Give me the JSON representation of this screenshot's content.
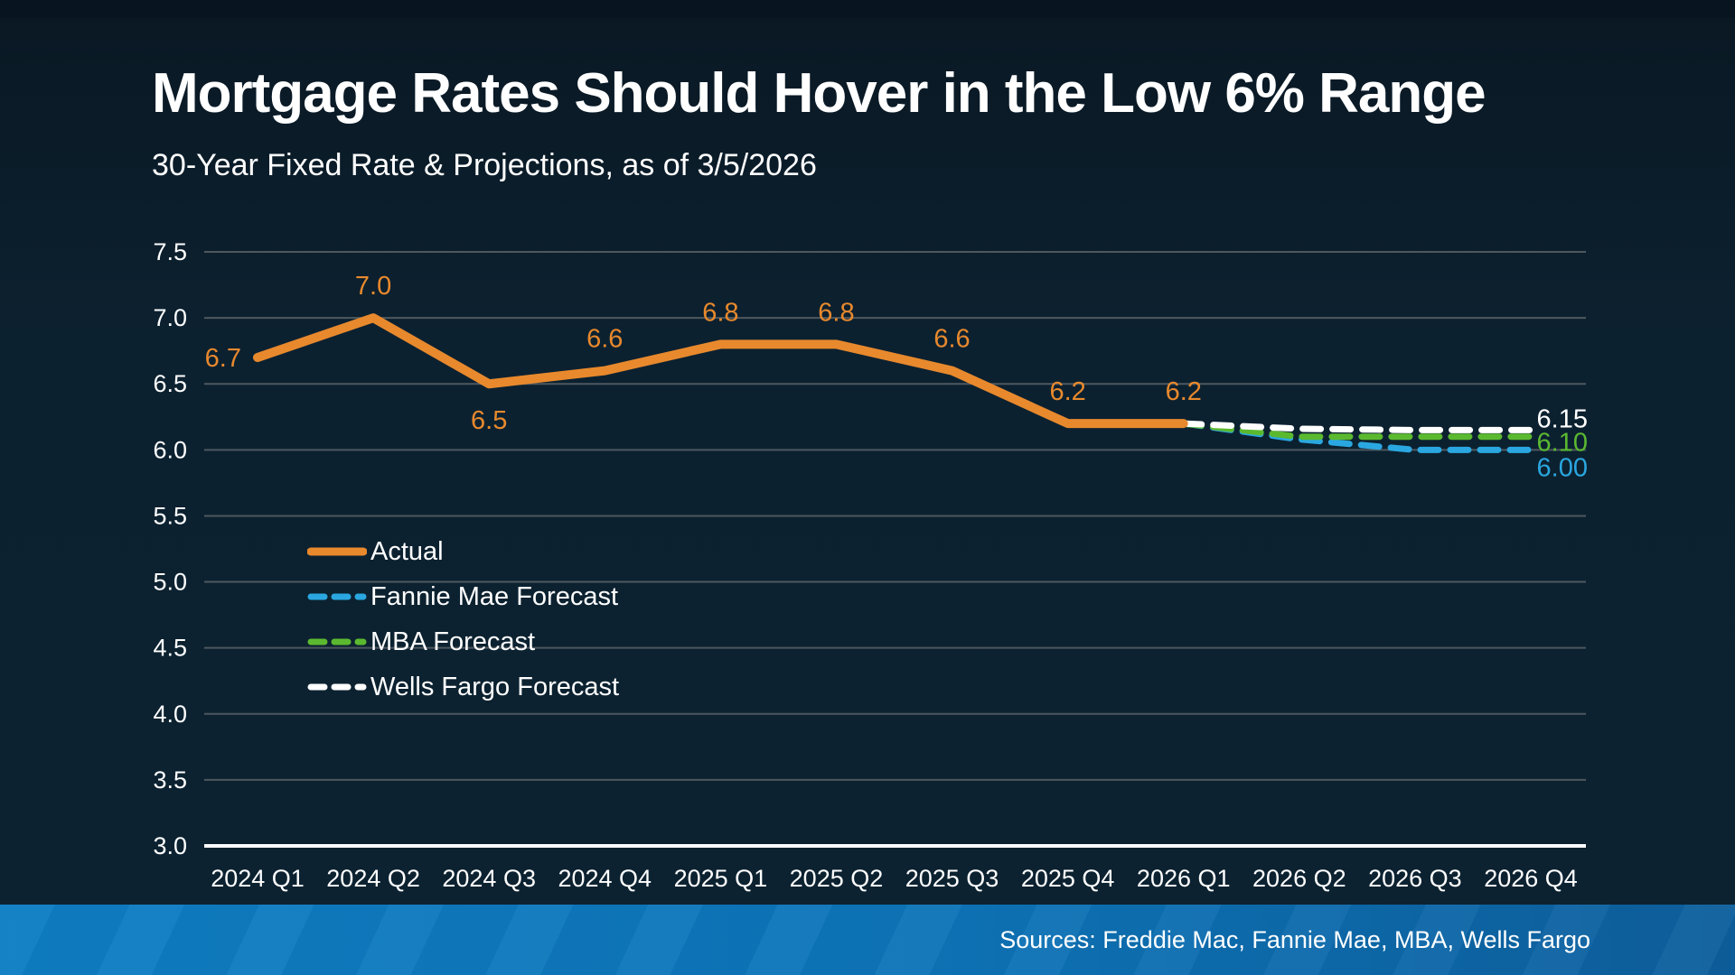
{
  "header": {
    "title": "Mortgage Rates Should Hover in the Low 6% Range",
    "subtitle": "30-Year Fixed Rate & Projections, as of 3/5/2026"
  },
  "footer": {
    "sources": "Sources: Freddie Mac, Fannie Mae, MBA, Wells Fargo"
  },
  "colors": {
    "background": "#0c2130",
    "top_bar": "#081521",
    "gridline": "#4e585f",
    "axis_line": "#ffffff",
    "tick_label": "#ffffff",
    "actual": "#e8892d",
    "fannie_mae": "#2aa7e0",
    "mba": "#5bb930",
    "wells_fargo": "#ffffff",
    "footer_left": "#0e7ec4",
    "footer_right": "#0d5f9d"
  },
  "chart_data": {
    "type": "line",
    "title": "Mortgage Rates Should Hover in the Low 6% Range",
    "subtitle": "30-Year Fixed Rate & Projections, as of 3/5/2026",
    "categories": [
      "2024 Q1",
      "2024 Q2",
      "2024 Q3",
      "2024 Q4",
      "2025 Q1",
      "2025 Q2",
      "2025 Q3",
      "2025 Q4",
      "2026 Q1",
      "2026 Q2",
      "2026 Q3",
      "2026 Q4"
    ],
    "ylim": [
      3.0,
      7.5
    ],
    "yticks": [
      "7.5",
      "7.0",
      "6.5",
      "6.0",
      "5.5",
      "5.0",
      "4.5",
      "4.0",
      "3.5",
      "3.0"
    ],
    "grid": true,
    "legend_position": "middle-left",
    "series": [
      {
        "name": "Actual",
        "style": "solid",
        "color": "#e8892d",
        "start_index": 0,
        "values": [
          6.7,
          7.0,
          6.5,
          6.6,
          6.8,
          6.8,
          6.6,
          6.2,
          6.2
        ],
        "point_labels": [
          "6.7",
          "7.0",
          "6.5",
          "6.6",
          "6.8",
          "6.8",
          "6.6",
          "6.2",
          "6.2"
        ],
        "label_placements": [
          "left",
          "above",
          "below",
          "above",
          "above",
          "above",
          "above",
          "above",
          "above"
        ]
      },
      {
        "name": "Fannie Mae Forecast",
        "style": "dashed",
        "color": "#2aa7e0",
        "start_index": 8,
        "values": [
          6.2,
          6.08,
          6.0,
          6.0
        ],
        "end_label": "6.00"
      },
      {
        "name": "MBA Forecast",
        "style": "dashed",
        "color": "#5bb930",
        "start_index": 8,
        "values": [
          6.2,
          6.1,
          6.1,
          6.1
        ],
        "end_label": "6.10"
      },
      {
        "name": "Wells Fargo Forecast",
        "style": "dashed",
        "color": "#ffffff",
        "start_index": 8,
        "values": [
          6.2,
          6.16,
          6.15,
          6.15
        ],
        "end_label": "6.15"
      }
    ]
  }
}
